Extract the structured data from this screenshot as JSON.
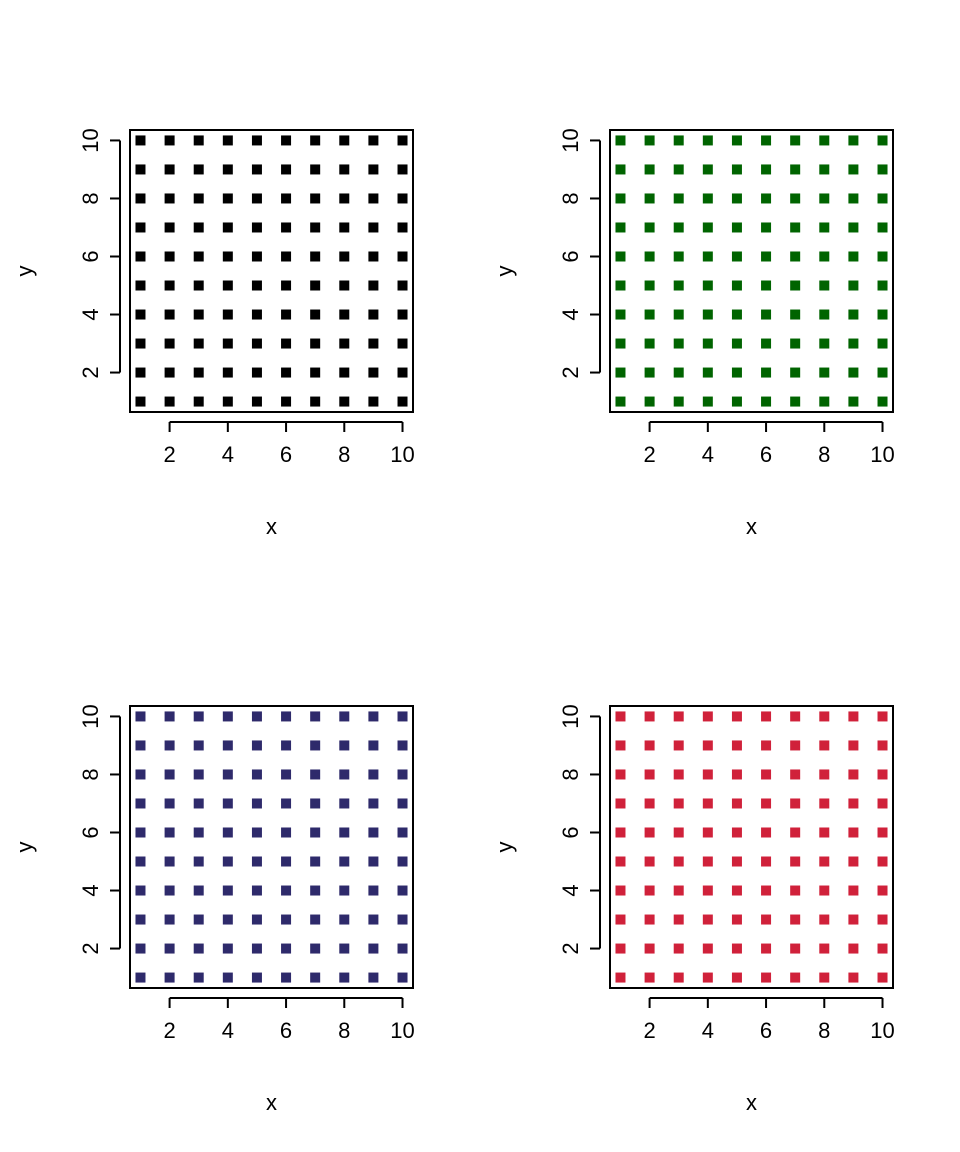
{
  "chart_data": [
    {
      "type": "scatter",
      "title": "",
      "xlabel": "x",
      "ylabel": "y",
      "xlim": [
        0.64,
        10.36
      ],
      "ylim": [
        0.64,
        10.36
      ],
      "xticks": [
        2,
        4,
        6,
        8,
        10
      ],
      "yticks": [
        2,
        4,
        6,
        8,
        10
      ],
      "grid": false,
      "marker": "square",
      "color": "#000000",
      "x": [
        1,
        2,
        3,
        4,
        5,
        6,
        7,
        8,
        9,
        10
      ],
      "y": [
        1,
        2,
        3,
        4,
        5,
        6,
        7,
        8,
        9,
        10
      ],
      "layout": "full-grid"
    },
    {
      "type": "scatter",
      "title": "",
      "xlabel": "x",
      "ylabel": "y",
      "xlim": [
        0.64,
        10.36
      ],
      "ylim": [
        0.64,
        10.36
      ],
      "xticks": [
        2,
        4,
        6,
        8,
        10
      ],
      "yticks": [
        2,
        4,
        6,
        8,
        10
      ],
      "grid": false,
      "marker": "square",
      "color": "#006400",
      "x": [
        1,
        2,
        3,
        4,
        5,
        6,
        7,
        8,
        9,
        10
      ],
      "y": [
        1,
        2,
        3,
        4,
        5,
        6,
        7,
        8,
        9,
        10
      ],
      "layout": "full-grid"
    },
    {
      "type": "scatter",
      "title": "",
      "xlabel": "x",
      "ylabel": "y",
      "xlim": [
        0.64,
        10.36
      ],
      "ylim": [
        0.64,
        10.36
      ],
      "xticks": [
        2,
        4,
        6,
        8,
        10
      ],
      "yticks": [
        2,
        4,
        6,
        8,
        10
      ],
      "grid": false,
      "marker": "square",
      "color": "#2E2A6B",
      "x": [
        1,
        2,
        3,
        4,
        5,
        6,
        7,
        8,
        9,
        10
      ],
      "y": [
        1,
        2,
        3,
        4,
        5,
        6,
        7,
        8,
        9,
        10
      ],
      "layout": "full-grid"
    },
    {
      "type": "scatter",
      "title": "",
      "xlabel": "x",
      "ylabel": "y",
      "xlim": [
        0.64,
        10.36
      ],
      "ylim": [
        0.64,
        10.36
      ],
      "xticks": [
        2,
        4,
        6,
        8,
        10
      ],
      "yticks": [
        2,
        4,
        6,
        8,
        10
      ],
      "grid": false,
      "marker": "square",
      "color": "#D0213A",
      "x": [
        1,
        2,
        3,
        4,
        5,
        6,
        7,
        8,
        9,
        10
      ],
      "y": [
        1,
        2,
        3,
        4,
        5,
        6,
        7,
        8,
        9,
        10
      ],
      "layout": "full-grid"
    }
  ]
}
